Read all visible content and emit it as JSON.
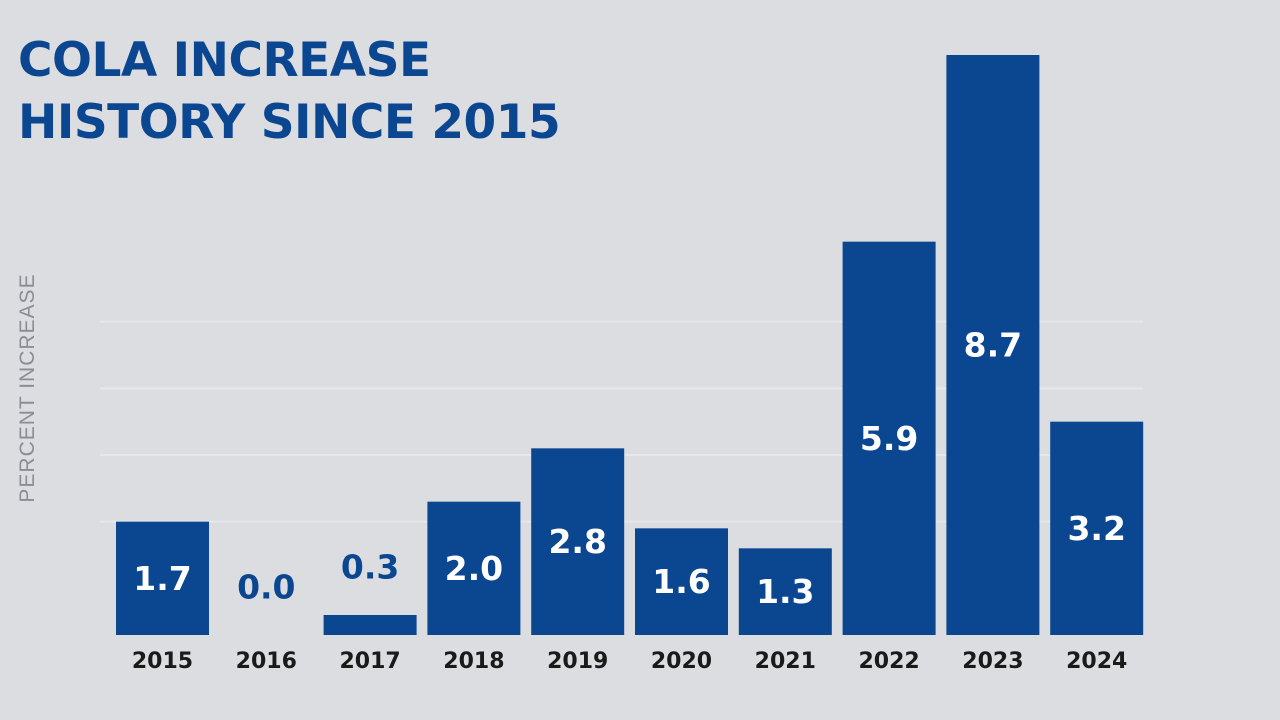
{
  "title_line1": "COLA INCREASE",
  "title_line2": "HISTORY SINCE 2015",
  "colors": {
    "background": "#dcdde1",
    "bar": "#0b4791",
    "title": "#0b4791",
    "bar_label_inside": "#ffffff",
    "bar_label_outside": "#0b4791",
    "gridline": "#e6e7ea",
    "tick_label": "#1a1a1a"
  },
  "chart_data": {
    "type": "bar",
    "title": "COLA INCREASE HISTORY SINCE 2015",
    "xlabel": "",
    "ylabel": "PERCENT INCREASE",
    "categories": [
      "2015",
      "2016",
      "2017",
      "2018",
      "2019",
      "2020",
      "2021",
      "2022",
      "2023",
      "2024"
    ],
    "values": [
      1.7,
      0.0,
      0.3,
      2.0,
      2.8,
      1.6,
      1.3,
      5.9,
      8.7,
      3.2
    ],
    "value_labels": [
      "1.7",
      "0.0",
      "0.3",
      "2.0",
      "2.8",
      "1.6",
      "1.3",
      "5.9",
      "8.7",
      "3.2"
    ],
    "ylim": [
      0,
      8.7
    ],
    "grid": true,
    "legend": "none"
  }
}
